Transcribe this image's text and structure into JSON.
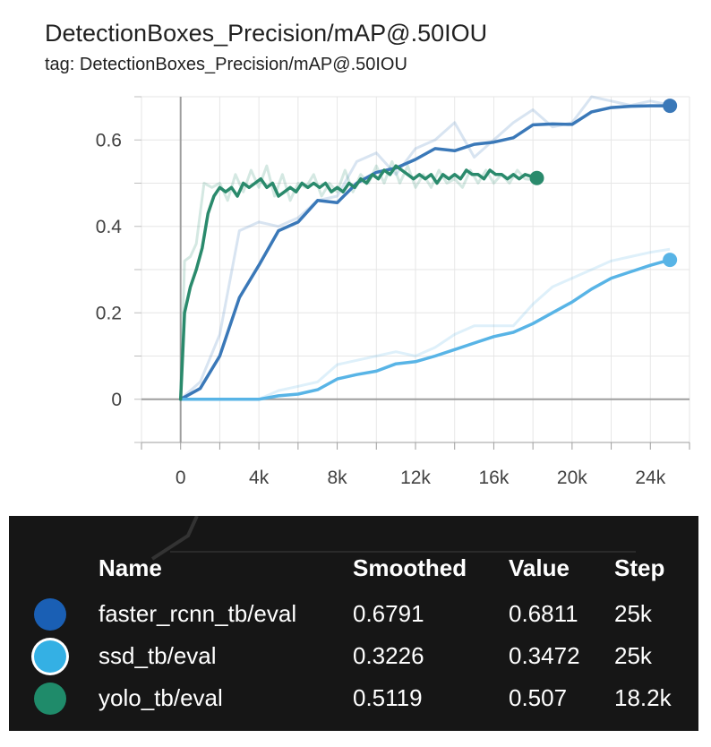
{
  "header": {
    "title": "DetectionBoxes_Precision/mAP@.50IOU",
    "subtitle": "tag: DetectionBoxes_Precision/mAP@.50IOU"
  },
  "chart_data": {
    "type": "line",
    "title": "DetectionBoxes_Precision/mAP@.50IOU",
    "xlabel": "",
    "ylabel": "",
    "xlim": [
      -2000,
      26000
    ],
    "ylim": [
      -0.1,
      0.7
    ],
    "x_ticks": [
      "0",
      "4k",
      "8k",
      "12k",
      "16k",
      "20k",
      "24k"
    ],
    "x_tick_values": [
      0,
      4000,
      8000,
      12000,
      16000,
      20000,
      24000
    ],
    "y_ticks": [
      "0",
      "0.2",
      "0.4",
      "0.6"
    ],
    "y_tick_values": [
      0,
      0.2,
      0.4,
      0.6
    ],
    "grid": true,
    "series": [
      {
        "name": "faster_rcnn_tb/eval",
        "color": "#3a78b8",
        "raw": [
          [
            0,
            0
          ],
          [
            1000,
            0.04
          ],
          [
            2000,
            0.15
          ],
          [
            3000,
            0.39
          ],
          [
            4000,
            0.41
          ],
          [
            5000,
            0.4
          ],
          [
            6000,
            0.42
          ],
          [
            7000,
            0.46
          ],
          [
            8000,
            0.47
          ],
          [
            9000,
            0.55
          ],
          [
            10000,
            0.57
          ],
          [
            11000,
            0.52
          ],
          [
            12000,
            0.58
          ],
          [
            13000,
            0.6
          ],
          [
            14000,
            0.64
          ],
          [
            15000,
            0.56
          ],
          [
            16000,
            0.6
          ],
          [
            17000,
            0.64
          ],
          [
            18000,
            0.67
          ],
          [
            19000,
            0.63
          ],
          [
            20000,
            0.64
          ],
          [
            21000,
            0.7
          ],
          [
            22000,
            0.69
          ],
          [
            23000,
            0.68
          ],
          [
            24000,
            0.69
          ],
          [
            25000,
            0.6811
          ]
        ],
        "smoothed": [
          [
            0,
            0
          ],
          [
            1000,
            0.025
          ],
          [
            2000,
            0.1
          ],
          [
            3000,
            0.235
          ],
          [
            4000,
            0.31
          ],
          [
            5000,
            0.39
          ],
          [
            6000,
            0.41
          ],
          [
            7000,
            0.46
          ],
          [
            8000,
            0.455
          ],
          [
            9000,
            0.5
          ],
          [
            10000,
            0.525
          ],
          [
            11000,
            0.535
          ],
          [
            12000,
            0.555
          ],
          [
            13000,
            0.58
          ],
          [
            14000,
            0.575
          ],
          [
            15000,
            0.59
          ],
          [
            16000,
            0.595
          ],
          [
            17000,
            0.605
          ],
          [
            18000,
            0.635
          ],
          [
            19000,
            0.637
          ],
          [
            20000,
            0.636
          ],
          [
            21000,
            0.665
          ],
          [
            22000,
            0.675
          ],
          [
            23000,
            0.678
          ],
          [
            24000,
            0.679
          ],
          [
            25000,
            0.6791
          ]
        ]
      },
      {
        "name": "ssd_tb/eval",
        "color": "#58b4e6",
        "raw": [
          [
            0,
            0
          ],
          [
            2000,
            0
          ],
          [
            4000,
            0
          ],
          [
            5000,
            0.02
          ],
          [
            6000,
            0.03
          ],
          [
            7000,
            0.04
          ],
          [
            8000,
            0.08
          ],
          [
            9000,
            0.09
          ],
          [
            10000,
            0.1
          ],
          [
            11000,
            0.11
          ],
          [
            12000,
            0.1
          ],
          [
            13000,
            0.12
          ],
          [
            14000,
            0.15
          ],
          [
            15000,
            0.17
          ],
          [
            16000,
            0.17
          ],
          [
            17000,
            0.17
          ],
          [
            18000,
            0.22
          ],
          [
            19000,
            0.26
          ],
          [
            20000,
            0.28
          ],
          [
            21000,
            0.3
          ],
          [
            22000,
            0.32
          ],
          [
            23000,
            0.33
          ],
          [
            24000,
            0.34
          ],
          [
            25000,
            0.3472
          ]
        ],
        "smoothed": [
          [
            0,
            0
          ],
          [
            2000,
            0
          ],
          [
            4000,
            0
          ],
          [
            5000,
            0.008
          ],
          [
            6000,
            0.012
          ],
          [
            7000,
            0.022
          ],
          [
            8000,
            0.047
          ],
          [
            9000,
            0.057
          ],
          [
            10000,
            0.065
          ],
          [
            11000,
            0.082
          ],
          [
            12000,
            0.087
          ],
          [
            13000,
            0.1
          ],
          [
            14000,
            0.115
          ],
          [
            15000,
            0.13
          ],
          [
            16000,
            0.145
          ],
          [
            17000,
            0.155
          ],
          [
            18000,
            0.175
          ],
          [
            19000,
            0.2
          ],
          [
            20000,
            0.225
          ],
          [
            21000,
            0.255
          ],
          [
            22000,
            0.28
          ],
          [
            23000,
            0.295
          ],
          [
            24000,
            0.31
          ],
          [
            25000,
            0.3226
          ]
        ]
      },
      {
        "name": "yolo_tb/eval",
        "color": "#2a8a6c",
        "raw": [
          [
            0,
            0
          ],
          [
            200,
            0.32
          ],
          [
            500,
            0.33
          ],
          [
            800,
            0.36
          ],
          [
            1200,
            0.5
          ],
          [
            1600,
            0.49
          ],
          [
            2000,
            0.5
          ],
          [
            2400,
            0.46
          ],
          [
            2800,
            0.52
          ],
          [
            3200,
            0.48
          ],
          [
            3600,
            0.53
          ],
          [
            4000,
            0.49
          ],
          [
            4400,
            0.54
          ],
          [
            4800,
            0.47
          ],
          [
            5200,
            0.52
          ],
          [
            5600,
            0.46
          ],
          [
            6000,
            0.5
          ],
          [
            6400,
            0.49
          ],
          [
            6800,
            0.52
          ],
          [
            7200,
            0.47
          ],
          [
            7600,
            0.5
          ],
          [
            8000,
            0.48
          ],
          [
            8400,
            0.53
          ],
          [
            8800,
            0.48
          ],
          [
            9200,
            0.52
          ],
          [
            9600,
            0.5
          ],
          [
            10000,
            0.54
          ],
          [
            10400,
            0.5
          ],
          [
            10800,
            0.55
          ],
          [
            11200,
            0.5
          ],
          [
            11600,
            0.54
          ],
          [
            12000,
            0.49
          ],
          [
            12400,
            0.52
          ],
          [
            12800,
            0.49
          ],
          [
            13200,
            0.53
          ],
          [
            13600,
            0.5
          ],
          [
            14000,
            0.51
          ],
          [
            14400,
            0.49
          ],
          [
            14800,
            0.53
          ],
          [
            15200,
            0.5
          ],
          [
            15600,
            0.53
          ],
          [
            16000,
            0.5
          ],
          [
            16400,
            0.52
          ],
          [
            16800,
            0.5
          ],
          [
            17200,
            0.53
          ],
          [
            17600,
            0.51
          ],
          [
            18200,
            0.507
          ]
        ],
        "smoothed": [
          [
            0,
            0
          ],
          [
            200,
            0.2
          ],
          [
            500,
            0.26
          ],
          [
            800,
            0.3
          ],
          [
            1100,
            0.35
          ],
          [
            1400,
            0.43
          ],
          [
            1700,
            0.47
          ],
          [
            2000,
            0.49
          ],
          [
            2300,
            0.48
          ],
          [
            2600,
            0.49
          ],
          [
            2900,
            0.47
          ],
          [
            3200,
            0.5
          ],
          [
            3500,
            0.49
          ],
          [
            3800,
            0.5
          ],
          [
            4100,
            0.51
          ],
          [
            4400,
            0.49
          ],
          [
            4700,
            0.5
          ],
          [
            5000,
            0.47
          ],
          [
            5300,
            0.48
          ],
          [
            5600,
            0.49
          ],
          [
            5900,
            0.48
          ],
          [
            6200,
            0.5
          ],
          [
            6500,
            0.49
          ],
          [
            6800,
            0.5
          ],
          [
            7100,
            0.49
          ],
          [
            7400,
            0.5
          ],
          [
            7700,
            0.48
          ],
          [
            8000,
            0.49
          ],
          [
            8300,
            0.48
          ],
          [
            8600,
            0.5
          ],
          [
            8900,
            0.49
          ],
          [
            9200,
            0.51
          ],
          [
            9500,
            0.5
          ],
          [
            9800,
            0.52
          ],
          [
            10100,
            0.51
          ],
          [
            10400,
            0.53
          ],
          [
            10700,
            0.52
          ],
          [
            11000,
            0.54
          ],
          [
            11300,
            0.53
          ],
          [
            11600,
            0.52
          ],
          [
            11900,
            0.51
          ],
          [
            12200,
            0.52
          ],
          [
            12500,
            0.51
          ],
          [
            12800,
            0.52
          ],
          [
            13100,
            0.5
          ],
          [
            13400,
            0.52
          ],
          [
            13700,
            0.51
          ],
          [
            14000,
            0.52
          ],
          [
            14300,
            0.51
          ],
          [
            14600,
            0.53
          ],
          [
            14900,
            0.52
          ],
          [
            15200,
            0.52
          ],
          [
            15500,
            0.51
          ],
          [
            15800,
            0.53
          ],
          [
            16100,
            0.52
          ],
          [
            16400,
            0.52
          ],
          [
            16700,
            0.51
          ],
          [
            17000,
            0.52
          ],
          [
            17300,
            0.51
          ],
          [
            17600,
            0.52
          ],
          [
            18200,
            0.5119
          ]
        ]
      }
    ]
  },
  "tooltip": {
    "headers": {
      "name": "Name",
      "smoothed": "Smoothed",
      "value": "Value",
      "step": "Step"
    },
    "rows": [
      {
        "name": "faster_rcnn_tb/eval",
        "smoothed": "0.6791",
        "value": "0.6811",
        "step": "25k",
        "color": "#1a5fb4",
        "selected": false
      },
      {
        "name": "ssd_tb/eval",
        "smoothed": "0.3226",
        "value": "0.3472",
        "step": "25k",
        "color": "#34b0e4",
        "selected": true
      },
      {
        "name": "yolo_tb/eval",
        "smoothed": "0.5119",
        "value": "0.507",
        "step": "18.2k",
        "color": "#1f8b6a",
        "selected": false
      }
    ]
  }
}
